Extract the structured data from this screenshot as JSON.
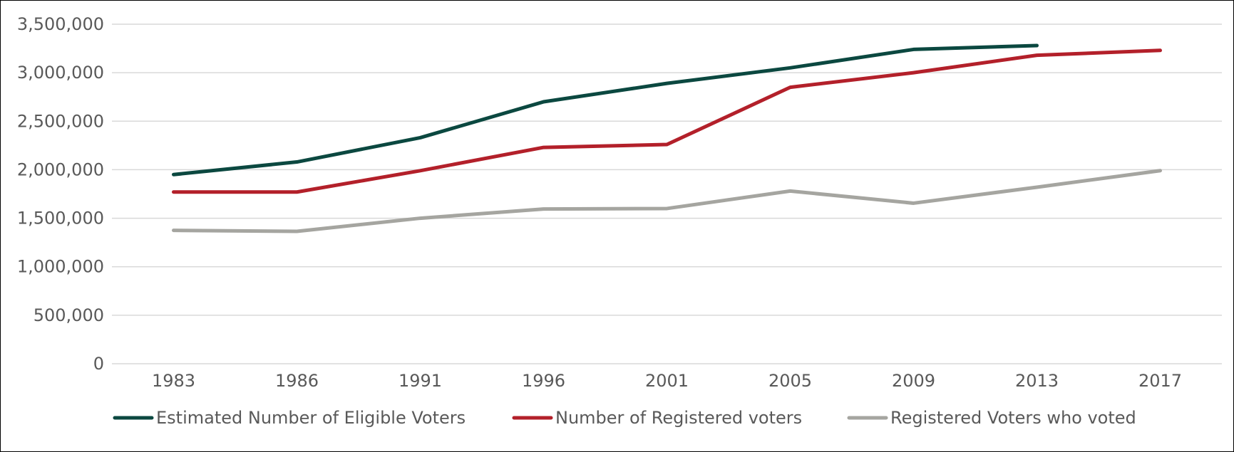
{
  "chart_data": {
    "type": "line",
    "title": "",
    "xlabel": "",
    "ylabel": "",
    "categories": [
      "1983",
      "1986",
      "1991",
      "1996",
      "2001",
      "2005",
      "2009",
      "2013",
      "2017"
    ],
    "ylim": [
      0,
      3500000
    ],
    "yticks": [
      {
        "value": 0,
        "label": "0"
      },
      {
        "value": 500000,
        "label": "500,000"
      },
      {
        "value": 1000000,
        "label": "1,000,000"
      },
      {
        "value": 1500000,
        "label": "1,500,000"
      },
      {
        "value": 2000000,
        "label": "2,000,000"
      },
      {
        "value": 2500000,
        "label": "2,500,000"
      },
      {
        "value": 3000000,
        "label": "3,000,000"
      },
      {
        "value": 3500000,
        "label": "3,500,000"
      }
    ],
    "grid": true,
    "legend_position": "bottom",
    "series": [
      {
        "name": "Estimated Number of Eligible Voters",
        "color": "#0b4840",
        "values": [
          1950000,
          2080000,
          2330000,
          2700000,
          2890000,
          3050000,
          3240000,
          3280000,
          null
        ]
      },
      {
        "name": "Number of Registered voters",
        "color": "#b3202a",
        "values": [
          1770000,
          1770000,
          1990000,
          2230000,
          2260000,
          2850000,
          3000000,
          3180000,
          3230000
        ]
      },
      {
        "name": "Registered Voters who voted",
        "color": "#a5a5a0",
        "values": [
          1375000,
          1365000,
          1500000,
          1595000,
          1600000,
          1780000,
          1655000,
          1820000,
          1990000
        ]
      }
    ]
  }
}
